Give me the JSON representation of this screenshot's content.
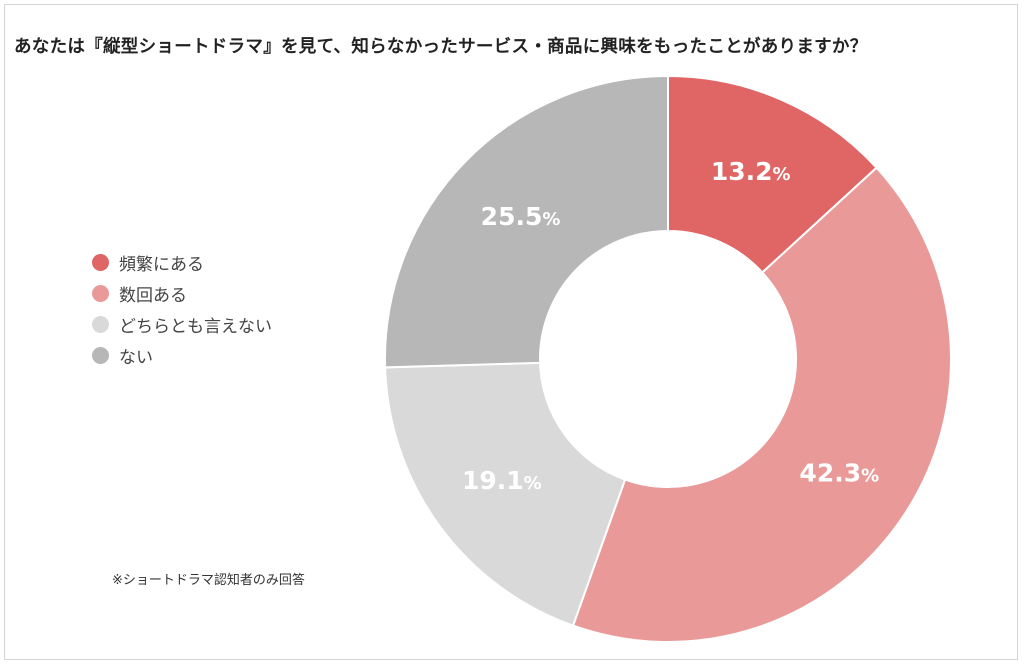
{
  "title": "あなたは『縦型ショートドラマ』を見て、知らなかったサービス・商品に興味をもったことがありますか？",
  "note": "※ショートドラマ認知者のみ回答",
  "chart_data": {
    "type": "pie",
    "title": "あなたは『縦型ショートドラマ』を見て、知らなかったサービス・商品に興味をもったことがありますか？",
    "categories": [
      "頻繁にある",
      "数回ある",
      "どちらとも言えない",
      "ない"
    ],
    "values": [
      13.2,
      42.3,
      19.1,
      25.5
    ],
    "unit": "%",
    "colors": [
      "#e06666",
      "#ea9999",
      "#d9d9d9",
      "#b7b7b7"
    ],
    "donut": true,
    "legend_position": "left"
  }
}
